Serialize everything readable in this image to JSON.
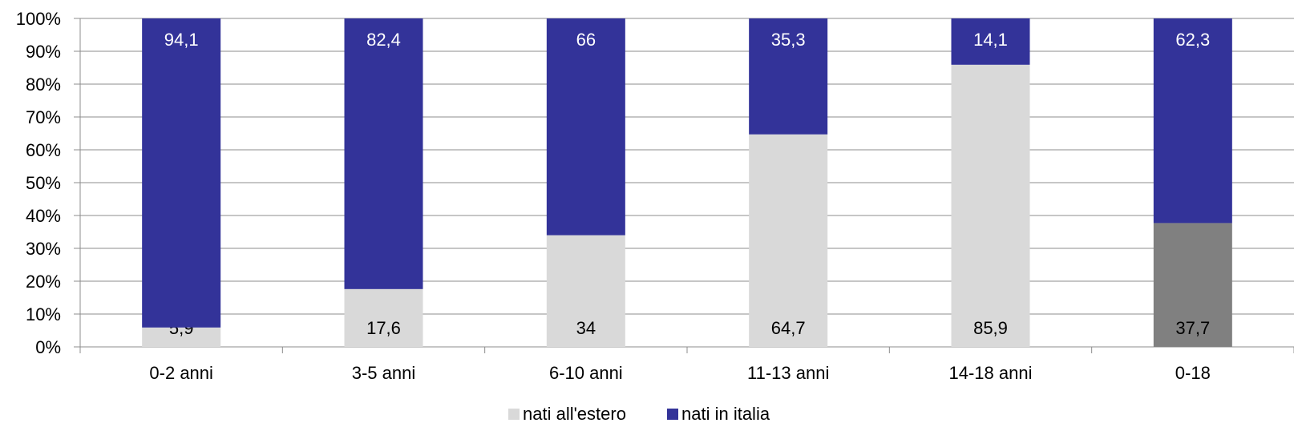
{
  "chart_data": {
    "type": "bar",
    "stacked": true,
    "categories": [
      "0-2 anni",
      "3-5 anni",
      "6-10 anni",
      "11-13 anni",
      "14-18 anni",
      "0-18"
    ],
    "series": [
      {
        "name": "nati all'estero",
        "values": [
          5.9,
          17.6,
          34,
          64.7,
          85.9,
          37.7
        ],
        "labels": [
          "5,9",
          "17,6",
          "34",
          "64,7",
          "85,9",
          "37,7"
        ],
        "color": "#d9d9d9",
        "highlight_color": "#808080",
        "highlight_index": 5,
        "label_color": "#000000"
      },
      {
        "name": "nati in italia",
        "values": [
          94.1,
          82.4,
          66,
          35.3,
          14.1,
          62.3
        ],
        "labels": [
          "94,1",
          "82,4",
          "66",
          "35,3",
          "14,1",
          "62,3"
        ],
        "color": "#333399",
        "label_color": "#ffffff"
      }
    ],
    "ylim": [
      0,
      100
    ],
    "yticks": [
      "0%",
      "10%",
      "20%",
      "30%",
      "40%",
      "50%",
      "60%",
      "70%",
      "80%",
      "90%",
      "100%"
    ],
    "grid": true,
    "legend": "bottom-center",
    "title": "",
    "xlabel": "",
    "ylabel": ""
  }
}
